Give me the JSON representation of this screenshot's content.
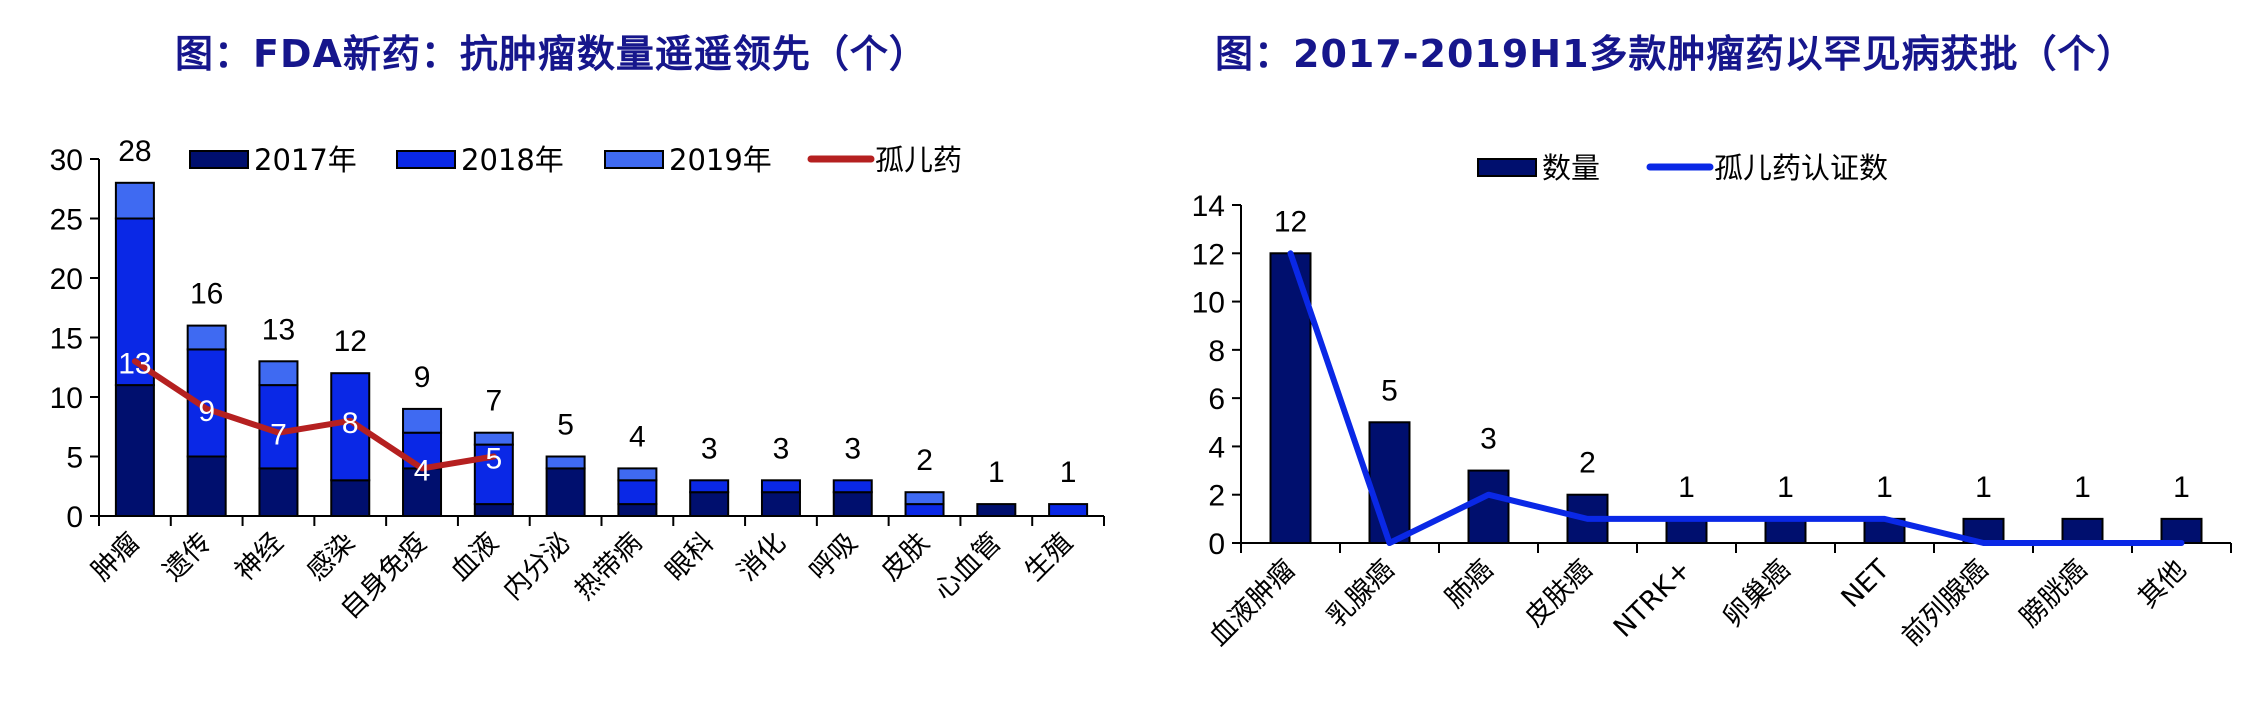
{
  "chart_data": [
    {
      "type": "bar",
      "stacked": true,
      "title": "图：FDA新药：抗肿瘤数量遥遥领先（个）",
      "xlabel": "",
      "ylabel": "",
      "ylim": [
        0,
        30
      ],
      "yticks": [
        0,
        5,
        10,
        15,
        20,
        25,
        30
      ],
      "grid": false,
      "legend_position": "top",
      "categories": [
        "肿瘤",
        "遗传",
        "神经",
        "感染",
        "自身免疫",
        "血液",
        "内分泌",
        "热带病",
        "眼科",
        "消化",
        "呼吸",
        "皮肤",
        "心血管",
        "生殖"
      ],
      "series": [
        {
          "name": "2017年",
          "kind": "bar",
          "color": "#000f6e",
          "values": [
            11,
            5,
            4,
            3,
            4,
            1,
            4,
            1,
            2,
            2,
            2,
            0,
            1,
            0
          ]
        },
        {
          "name": "2018年",
          "kind": "bar",
          "color": "#0a28e6",
          "values": [
            14,
            9,
            7,
            9,
            3,
            5,
            0,
            2,
            1,
            1,
            1,
            1,
            0,
            1
          ]
        },
        {
          "name": "2019年",
          "kind": "bar",
          "color": "#3f6af2",
          "values": [
            3,
            2,
            2,
            0,
            2,
            1,
            1,
            1,
            0,
            0,
            0,
            1,
            0,
            0
          ]
        },
        {
          "name": "孤儿药",
          "kind": "line",
          "color": "#b52020",
          "values": [
            13,
            9,
            7,
            8,
            4,
            5,
            null,
            null,
            null,
            null,
            null,
            null,
            null,
            null
          ]
        }
      ],
      "totals": [
        28,
        16,
        13,
        12,
        9,
        7,
        5,
        4,
        3,
        3,
        3,
        2,
        1,
        1
      ]
    },
    {
      "type": "bar",
      "stacked": false,
      "title": "图：2017-2019H1多款肿瘤药以罕见病获批（个）",
      "xlabel": "",
      "ylabel": "",
      "ylim": [
        0,
        14
      ],
      "yticks": [
        0,
        2,
        4,
        6,
        8,
        10,
        12,
        14
      ],
      "grid": false,
      "legend_position": "top",
      "categories": [
        "血液肿瘤",
        "乳腺癌",
        "肺癌",
        "皮肤癌",
        "NTRK+",
        "卵巢癌",
        "NET",
        "前列腺癌",
        "膀胱癌",
        "其他"
      ],
      "series": [
        {
          "name": "数量",
          "kind": "bar",
          "color": "#000f6e",
          "values": [
            12,
            5,
            3,
            2,
            1,
            1,
            1,
            1,
            1,
            1
          ]
        },
        {
          "name": "孤儿药认证数",
          "kind": "line",
          "color": "#0a28e6",
          "values": [
            12,
            0,
            2,
            1,
            1,
            1,
            1,
            0,
            0,
            0
          ]
        }
      ]
    }
  ]
}
